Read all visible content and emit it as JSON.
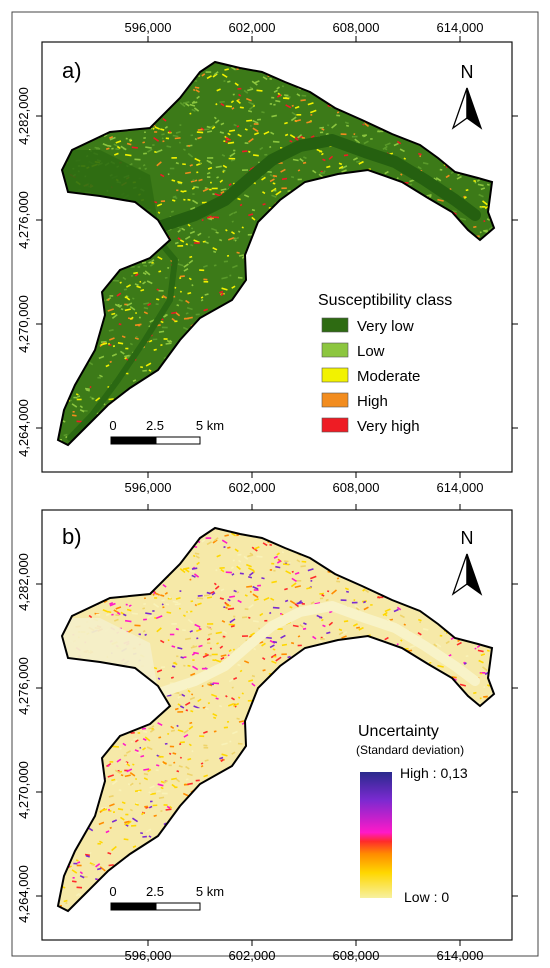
{
  "panels": [
    {
      "label": "a)",
      "x_ticks": [
        "596,000",
        "602,000",
        "608,000",
        "614,000"
      ],
      "y_ticks": [
        "4,282,000",
        "4,276,000",
        "4,270,000",
        "4,264,000"
      ],
      "north": "N",
      "scale": {
        "labels": [
          "0",
          "2.5",
          "5 km"
        ]
      },
      "legend": {
        "title": "Susceptibility class",
        "items": [
          {
            "label": "Very low",
            "color": "#2e6b12"
          },
          {
            "label": "Low",
            "color": "#8cc63f"
          },
          {
            "label": "Moderate",
            "color": "#f2f200"
          },
          {
            "label": "High",
            "color": "#f28c1e"
          },
          {
            "label": "Very high",
            "color": "#ee1c24"
          }
        ]
      }
    },
    {
      "label": "b)",
      "x_ticks": [
        "596,000",
        "602,000",
        "608,000",
        "614,000"
      ],
      "y_ticks": [
        "4,282,000",
        "4,276,000",
        "4,270,000",
        "4,264,000"
      ],
      "north": "N",
      "scale": {
        "labels": [
          "0",
          "2.5",
          "5 km"
        ]
      },
      "legend": {
        "title": "Uncertainty",
        "subtitle": "(Standard deviation)",
        "high_label": "High : 0,13",
        "low_label": "Low : 0",
        "ramp_colors": [
          "#2a2a8c",
          "#7a2ad0",
          "#ff19c8",
          "#ff2b2b",
          "#ff8c00",
          "#ffd700",
          "#f7f0a0"
        ]
      }
    }
  ]
}
